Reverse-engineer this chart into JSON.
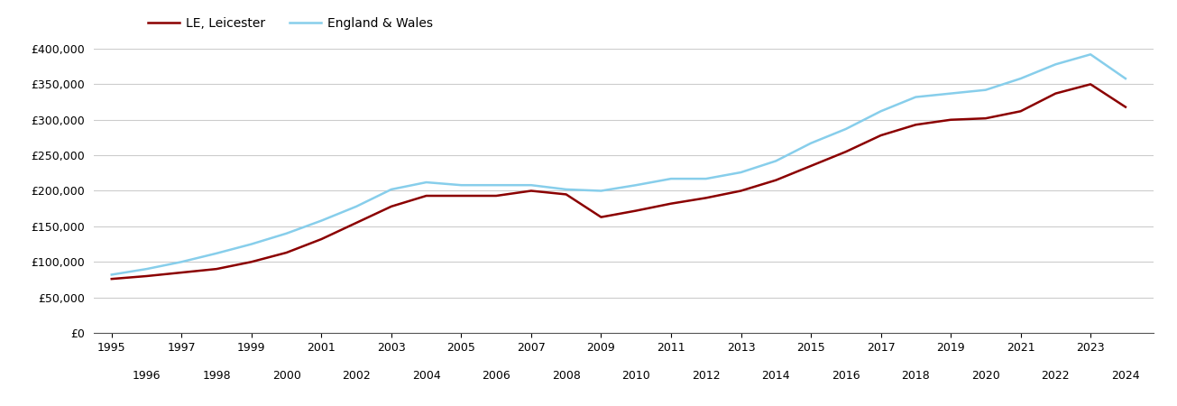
{
  "years": [
    1995,
    1996,
    1997,
    1998,
    1999,
    2000,
    2001,
    2002,
    2003,
    2004,
    2005,
    2006,
    2007,
    2008,
    2009,
    2010,
    2011,
    2012,
    2013,
    2014,
    2015,
    2016,
    2017,
    2018,
    2019,
    2020,
    2021,
    2022,
    2023,
    2024
  ],
  "leicester": [
    76000,
    80000,
    85000,
    90000,
    100000,
    113000,
    132000,
    155000,
    178000,
    193000,
    193000,
    193000,
    200000,
    195000,
    163000,
    172000,
    182000,
    190000,
    200000,
    215000,
    235000,
    255000,
    278000,
    293000,
    300000,
    302000,
    312000,
    337000,
    350000,
    318000
  ],
  "england_wales": [
    82000,
    90000,
    100000,
    112000,
    125000,
    140000,
    158000,
    178000,
    202000,
    212000,
    208000,
    208000,
    208000,
    202000,
    200000,
    208000,
    217000,
    217000,
    226000,
    242000,
    267000,
    287000,
    312000,
    332000,
    337000,
    342000,
    358000,
    378000,
    392000,
    358000
  ],
  "leicester_color": "#8B0000",
  "england_wales_color": "#87CEEB",
  "legend_leicester": "LE, Leicester",
  "legend_england_wales": "England & Wales",
  "ylim": [
    0,
    400000
  ],
  "yticks": [
    0,
    50000,
    100000,
    150000,
    200000,
    250000,
    300000,
    350000,
    400000
  ],
  "background_color": "#ffffff",
  "grid_color": "#cccccc",
  "line_width": 1.8,
  "odd_years": [
    1995,
    1997,
    1999,
    2001,
    2003,
    2005,
    2007,
    2009,
    2011,
    2013,
    2015,
    2017,
    2019,
    2021,
    2023
  ],
  "even_years": [
    1996,
    1998,
    2000,
    2002,
    2004,
    2006,
    2008,
    2010,
    2012,
    2014,
    2016,
    2018,
    2020,
    2022,
    2024
  ]
}
